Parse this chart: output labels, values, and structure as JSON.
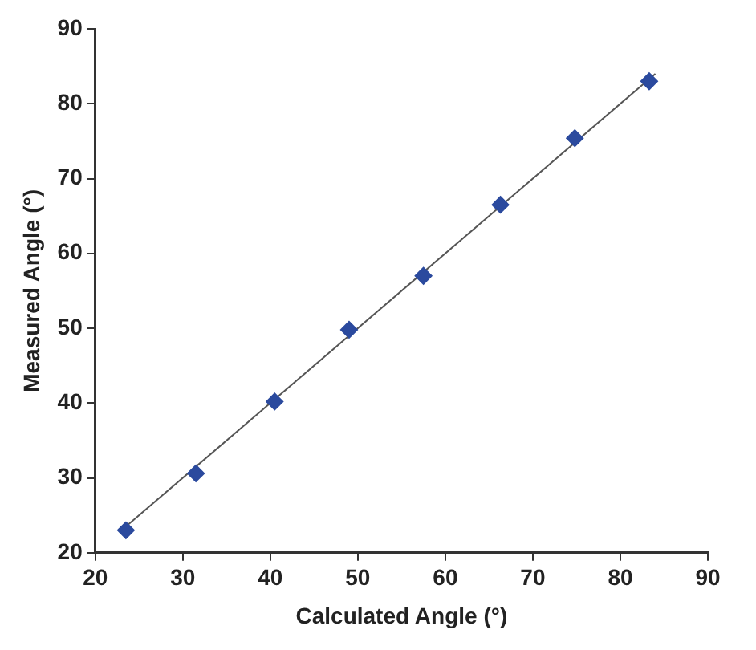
{
  "chart_data": {
    "type": "scatter",
    "xlabel": "Calculated Angle (°)",
    "ylabel": "Measured Angle (°)",
    "xlim": [
      20,
      90
    ],
    "ylim": [
      20,
      90
    ],
    "xticks": [
      20,
      30,
      40,
      50,
      60,
      70,
      80,
      90
    ],
    "yticks": [
      20,
      30,
      40,
      50,
      60,
      70,
      80,
      90
    ],
    "grid": false,
    "legend": false,
    "marker": "diamond",
    "series": [
      {
        "color": "#2b4a9e",
        "x": [
          23.5,
          31.5,
          40.5,
          49,
          57.5,
          66.3,
          74.8,
          83.3
        ],
        "values": [
          23,
          30.6,
          40.2,
          49.8,
          57,
          66.5,
          75.4,
          83
        ]
      },
      {
        "type": "line",
        "color": "#555555",
        "marker": "none",
        "line_style": "solid",
        "x": [
          23,
          84
        ],
        "values": [
          23,
          84
        ]
      }
    ]
  }
}
